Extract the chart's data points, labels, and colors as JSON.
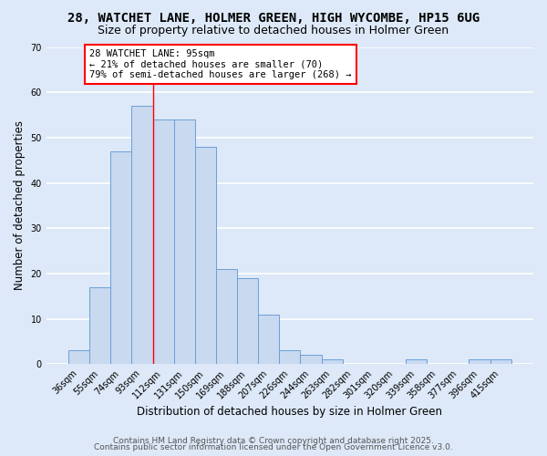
{
  "title1": "28, WATCHET LANE, HOLMER GREEN, HIGH WYCOMBE, HP15 6UG",
  "title2": "Size of property relative to detached houses in Holmer Green",
  "xlabel": "Distribution of detached houses by size in Holmer Green",
  "ylabel": "Number of detached properties",
  "bin_labels": [
    "36sqm",
    "55sqm",
    "74sqm",
    "93sqm",
    "112sqm",
    "131sqm",
    "150sqm",
    "169sqm",
    "188sqm",
    "207sqm",
    "226sqm",
    "244sqm",
    "263sqm",
    "282sqm",
    "301sqm",
    "320sqm",
    "339sqm",
    "358sqm",
    "377sqm",
    "396sqm",
    "415sqm"
  ],
  "bar_values": [
    3,
    17,
    47,
    57,
    54,
    54,
    48,
    21,
    19,
    11,
    3,
    2,
    1,
    0,
    0,
    0,
    1,
    0,
    0,
    1,
    1
  ],
  "bar_color": "#c8d9f0",
  "bar_edge_color": "#6a9fd8",
  "ylim": [
    0,
    70
  ],
  "yticks": [
    0,
    10,
    20,
    30,
    40,
    50,
    60,
    70
  ],
  "annotation_line1": "28 WATCHET LANE: 95sqm",
  "annotation_line2": "← 21% of detached houses are smaller (70)",
  "annotation_line3": "79% of semi-detached houses are larger (268) →",
  "footer1": "Contains HM Land Registry data © Crown copyright and database right 2025.",
  "footer2": "Contains public sector information licensed under the Open Government Licence v3.0.",
  "background_color": "#dde8f8",
  "plot_bg_color": "#dde8f8",
  "grid_color": "#ffffff",
  "title1_fontsize": 10,
  "title2_fontsize": 9,
  "axis_label_fontsize": 8.5,
  "tick_fontsize": 7,
  "ann_fontsize": 7.5,
  "footer_fontsize": 6.5,
  "vline_x": 3.5
}
